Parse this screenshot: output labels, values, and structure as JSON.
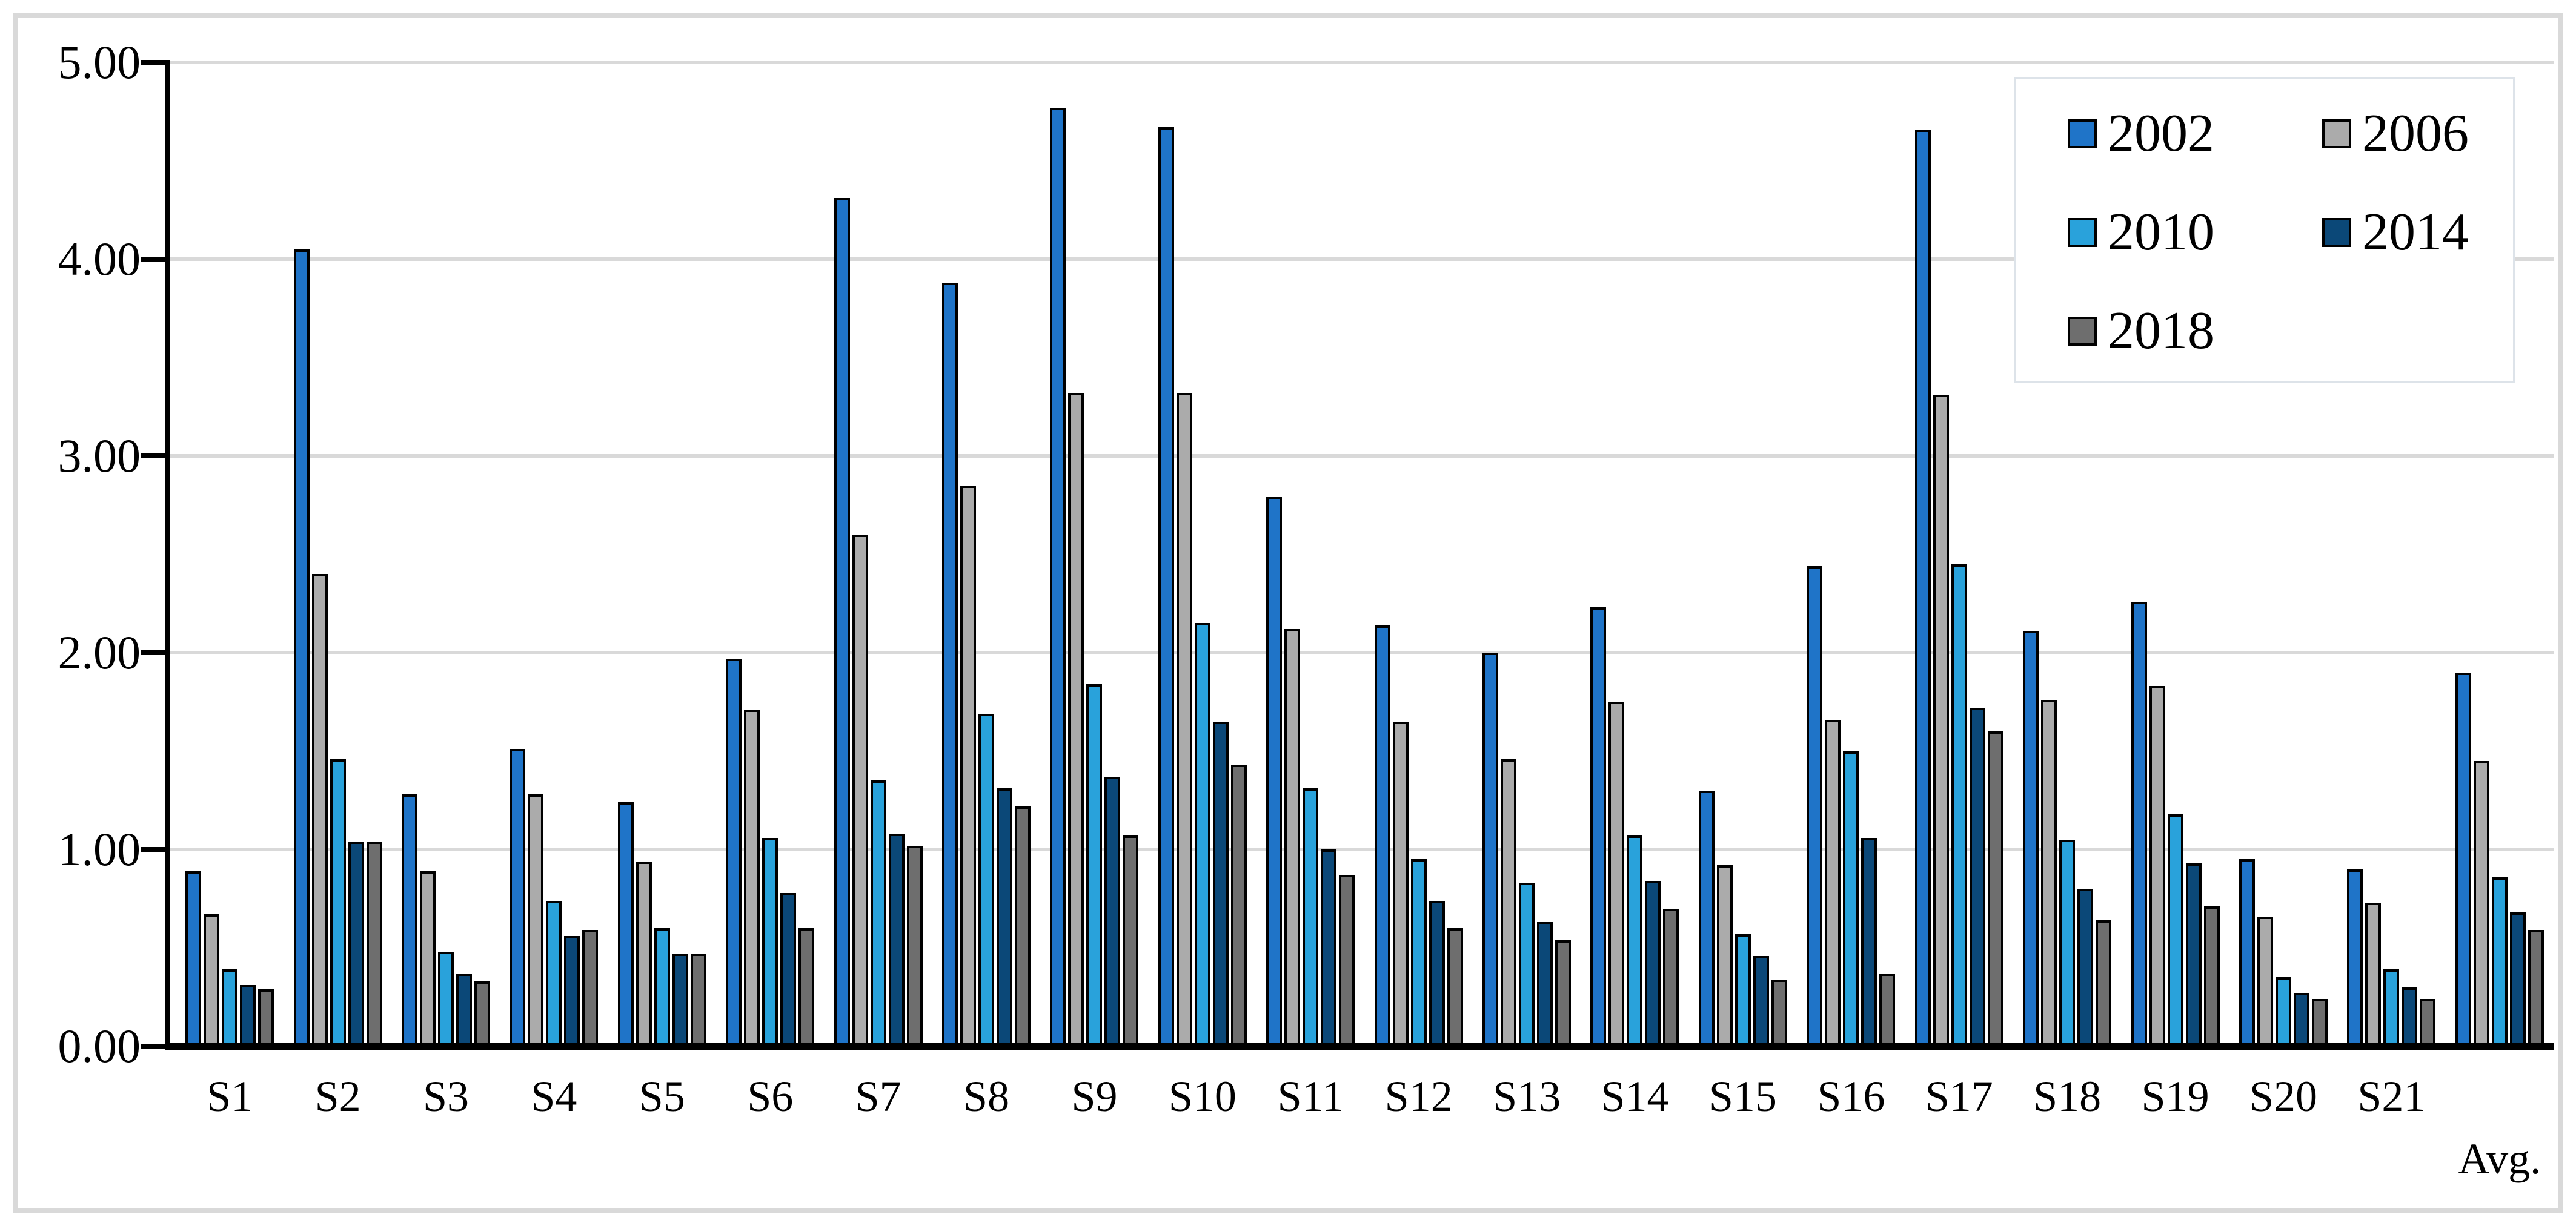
{
  "chart_data": {
    "type": "bar",
    "title": "",
    "xlabel": "",
    "ylabel": "",
    "grid": true,
    "legend_position": "top-right",
    "ylim": [
      0,
      5
    ],
    "ytick_step": 1,
    "ytick_labels": [
      "0.00",
      "1.00",
      "2.00",
      "3.00",
      "4.00",
      "5.00"
    ],
    "categories": [
      "S1",
      "S2",
      "S3",
      "S4",
      "S5",
      "S6",
      "S7",
      "S8",
      "S9",
      "S10",
      "S11",
      "S12",
      "S13",
      "S14",
      "S15",
      "S16",
      "S17",
      "S18",
      "S19",
      "S20",
      "S21",
      "Avg."
    ],
    "series": [
      {
        "name": "2002",
        "color": "#1F74C8",
        "values": [
          0.89,
          4.05,
          1.28,
          1.51,
          1.24,
          1.97,
          4.31,
          3.88,
          4.77,
          4.67,
          2.79,
          2.14,
          2.0,
          2.23,
          1.3,
          2.44,
          4.66,
          2.11,
          2.26,
          0.95,
          0.9,
          1.9
        ]
      },
      {
        "name": "2006",
        "color": "#ABABAB",
        "values": [
          0.67,
          2.4,
          0.89,
          1.28,
          0.94,
          1.71,
          2.6,
          2.85,
          3.32,
          3.32,
          2.12,
          1.65,
          1.46,
          1.75,
          0.92,
          1.66,
          3.31,
          1.76,
          1.83,
          0.66,
          0.73,
          1.45
        ]
      },
      {
        "name": "2010",
        "color": "#29A2DB",
        "values": [
          0.39,
          1.46,
          0.48,
          0.74,
          0.6,
          1.06,
          1.35,
          1.69,
          1.84,
          2.15,
          1.31,
          0.95,
          0.83,
          1.07,
          0.57,
          1.5,
          2.45,
          1.05,
          1.18,
          0.35,
          0.39,
          0.86
        ]
      },
      {
        "name": "2014",
        "color": "#0B4878",
        "values": [
          0.31,
          1.04,
          0.37,
          0.56,
          0.47,
          0.78,
          1.08,
          1.31,
          1.37,
          1.65,
          1.0,
          0.74,
          0.63,
          0.84,
          0.46,
          1.06,
          1.72,
          0.8,
          0.93,
          0.27,
          0.3,
          0.68
        ]
      },
      {
        "name": "2018",
        "color": "#6E6E6E",
        "values": [
          0.29,
          1.04,
          0.33,
          0.59,
          0.47,
          0.6,
          1.02,
          1.22,
          1.07,
          1.43,
          0.87,
          0.6,
          0.54,
          0.7,
          0.34,
          0.37,
          1.6,
          0.64,
          0.71,
          0.24,
          0.24,
          0.59
        ]
      }
    ],
    "axis_color": "#000000",
    "gridline_color": "#D9D9D9",
    "offset_category_label": "Avg."
  }
}
